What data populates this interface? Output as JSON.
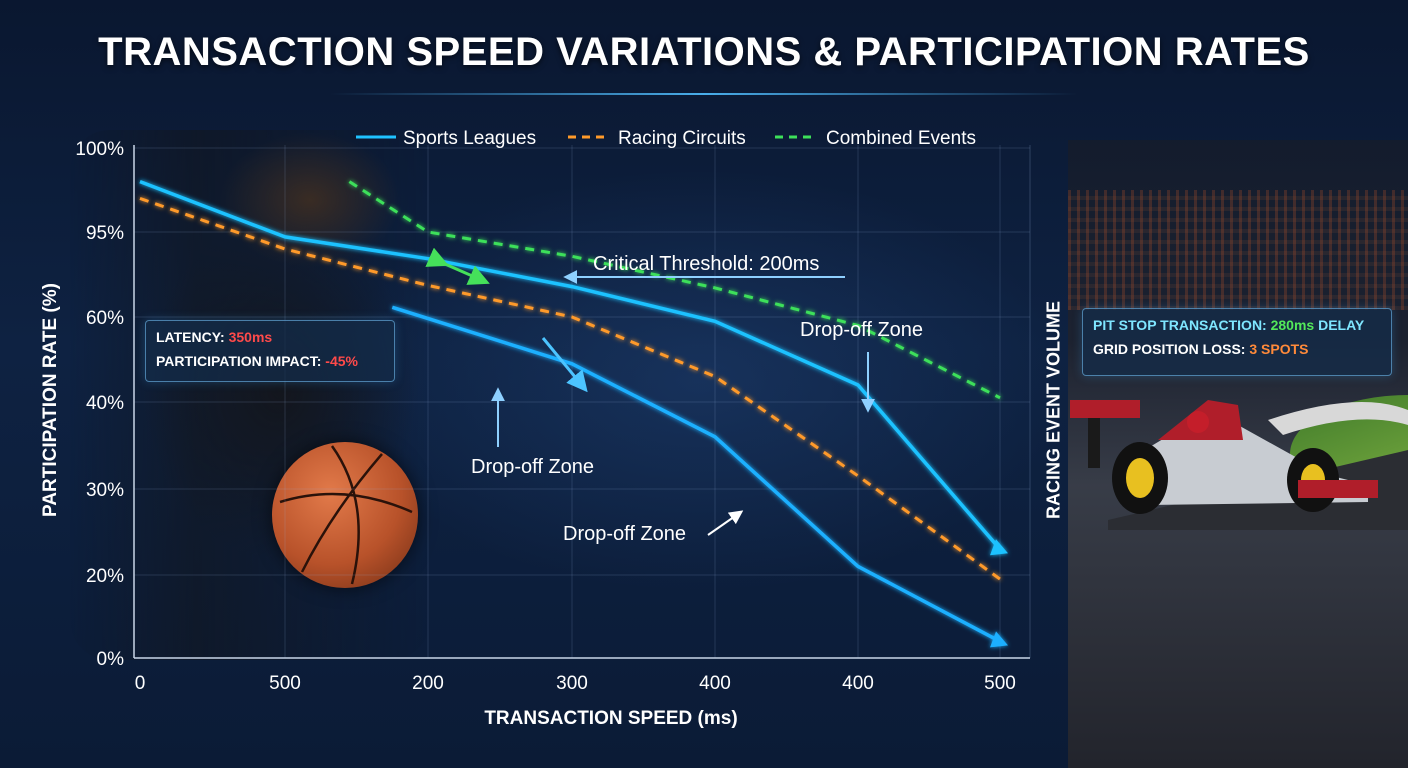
{
  "title": "TRANSACTION SPEED VARIATIONS & PARTICIPATION RATES",
  "chart_data": {
    "type": "line",
    "xlabel": "TRANSACTION SPEED (ms)",
    "ylabel": "PARTICIPATION RATE (%)",
    "x_tick_labels": [
      "0",
      "500",
      "200",
      "300",
      "400",
      "400",
      "500"
    ],
    "y_tick_labels": [
      "100%",
      "95%",
      "60%",
      "40%",
      "30%",
      "20%",
      "0%"
    ],
    "grid": true,
    "legend_position": "top",
    "series": [
      {
        "name": "Sports Leagues",
        "color": "#1fc2ff",
        "style": "solid",
        "points": [
          [
            0,
            98
          ],
          [
            1,
            93
          ],
          [
            2,
            84
          ],
          [
            3,
            72.5
          ],
          [
            4,
            59
          ],
          [
            5,
            44
          ],
          [
            6,
            23
          ]
        ]
      },
      {
        "name": "",
        "color": "#1fb0ff",
        "style": "solid",
        "points": [
          [
            1.75,
            64
          ],
          [
            3,
            49
          ],
          [
            4,
            36
          ],
          [
            5,
            21
          ],
          [
            6,
            4
          ]
        ]
      },
      {
        "name": "Racing Circuits",
        "color": "#ff9a2a",
        "style": "dashed",
        "points": [
          [
            0,
            97
          ],
          [
            1,
            88
          ],
          [
            2,
            73
          ],
          [
            3,
            60
          ],
          [
            4,
            46
          ],
          [
            5,
            31.5
          ],
          [
            6,
            19
          ]
        ]
      },
      {
        "name": "Combined Events",
        "color": "#3de05a",
        "style": "dashed",
        "points": [
          [
            1.45,
            98
          ],
          [
            2,
            95
          ],
          [
            3,
            85
          ],
          [
            4,
            72
          ],
          [
            5,
            58
          ],
          [
            6,
            41
          ]
        ]
      }
    ],
    "annotations": [
      {
        "text": "Critical Threshold: 200ms"
      },
      {
        "text": "Drop-off Zone"
      },
      {
        "text": "Drop-off Zone"
      },
      {
        "text": "Drop-off Zone"
      }
    ]
  },
  "cards": {
    "latency": {
      "label1": "LATENCY: ",
      "value1": "350ms",
      "label2": "PARTICIPATION IMPACT: ",
      "value2": "-45%"
    },
    "pit_stop": {
      "label1": "PIT STOP TRANSACTION: ",
      "value1": "280ms",
      "suffix1": " DELAY",
      "label2": "GRID POSITION LOSS: ",
      "value2": "3 SPOTS"
    }
  },
  "racing_label": "RACING EVENT VOLUME"
}
